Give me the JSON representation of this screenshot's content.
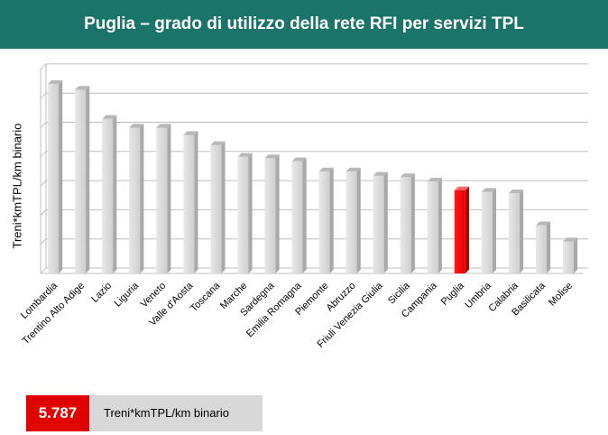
{
  "title": "Puglia – grado di utilizzo della rete RFI per servizi TPL",
  "colors": {
    "header": "#1b7469",
    "bar": "#d9d9d9",
    "highlight": "#ff0000",
    "highlight_box": "#e00000"
  },
  "chart_data": {
    "type": "bar",
    "title": "",
    "ylabel": "Treni*kmTPL/km binario",
    "xlabel": "",
    "categories": [
      "Lombardia",
      "Trentino Alto Adige",
      "Lazio",
      "Liguria",
      "Veneto",
      "Valle d'Aosta",
      "Toscana",
      "Marche",
      "Sardegna",
      "Emilia Romagna",
      "Piemonte",
      "Abruzzo",
      "Friuli Venezia Giulia",
      "Sicilia",
      "Campania",
      "Puglia",
      "Umbria",
      "Calabria",
      "Basilicata",
      "Molise"
    ],
    "values": [
      6.5,
      6.3,
      5.3,
      5.0,
      5.0,
      4.75,
      4.4,
      4.0,
      3.95,
      3.85,
      3.5,
      3.5,
      3.35,
      3.3,
      3.15,
      2.85,
      2.8,
      2.75,
      1.65,
      1.1
    ],
    "highlight": "Puglia",
    "ylim": [
      0,
      7
    ],
    "grid": true
  },
  "summary": {
    "value": "5.787",
    "unit": "Treni*kmTPL/km binario"
  }
}
